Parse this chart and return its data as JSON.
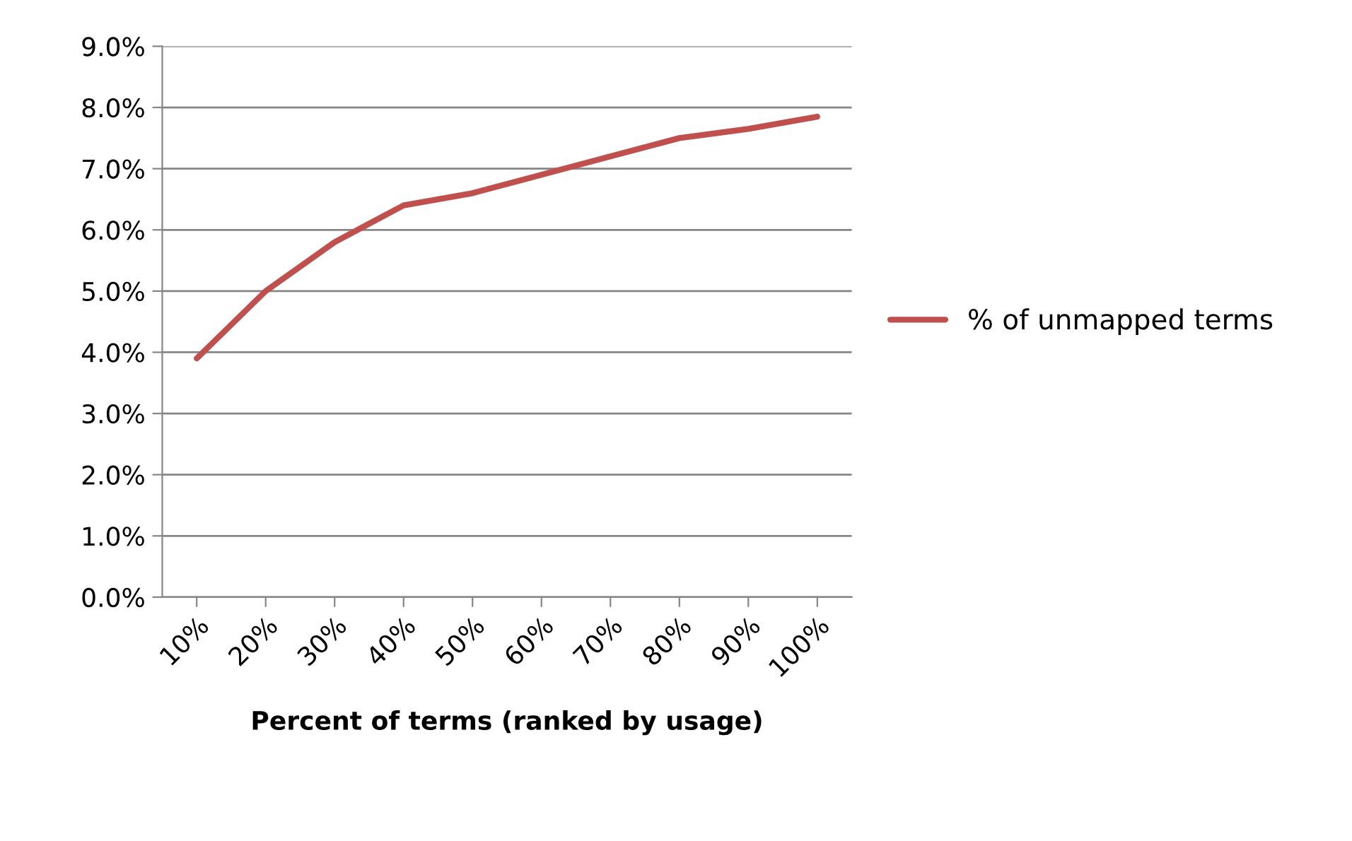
{
  "chart_data": {
    "type": "line",
    "xlabel": "Percent of terms (ranked by usage)",
    "categories": [
      "10%",
      "20%",
      "30%",
      "40%",
      "50%",
      "60%",
      "70%",
      "80%",
      "90%",
      "100%"
    ],
    "series": [
      {
        "name": "% of unmapped terms",
        "color": "#c0504d",
        "values": [
          3.9,
          5.0,
          5.8,
          6.4,
          6.6,
          6.9,
          7.2,
          7.5,
          7.65,
          7.85
        ]
      }
    ],
    "ylim": [
      0,
      9
    ],
    "yticks": [
      {
        "value": 0,
        "label": "0.0%"
      },
      {
        "value": 1,
        "label": "1.0%"
      },
      {
        "value": 2,
        "label": "2.0%"
      },
      {
        "value": 3,
        "label": "3.0%"
      },
      {
        "value": 4,
        "label": "4.0%"
      },
      {
        "value": 5,
        "label": "5.0%"
      },
      {
        "value": 6,
        "label": "6.0%"
      },
      {
        "value": 7,
        "label": "7.0%"
      },
      {
        "value": 8,
        "label": "8.0%"
      },
      {
        "value": 9,
        "label": "9.0%"
      }
    ],
    "grid": "y",
    "legend": "right",
    "marker": "none",
    "line_style": "solid"
  }
}
